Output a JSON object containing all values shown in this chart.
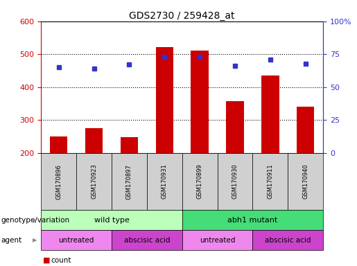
{
  "title": "GDS2730 / 259428_at",
  "samples": [
    "GSM170896",
    "GSM170923",
    "GSM170897",
    "GSM170931",
    "GSM170899",
    "GSM170930",
    "GSM170911",
    "GSM170940"
  ],
  "counts": [
    250,
    275,
    248,
    522,
    510,
    358,
    435,
    340
  ],
  "percentile_ranks": [
    65,
    64,
    67,
    73,
    73,
    66,
    71,
    68
  ],
  "ylim_left": [
    200,
    600
  ],
  "ylim_right": [
    0,
    100
  ],
  "yticks_left": [
    200,
    300,
    400,
    500,
    600
  ],
  "yticks_right": [
    0,
    25,
    50,
    75,
    100
  ],
  "ytick_labels_right": [
    "0",
    "25",
    "50",
    "75",
    "100%"
  ],
  "bar_color": "#cc0000",
  "dot_color": "#3333cc",
  "bar_bottom": 200,
  "genotype_groups": [
    {
      "label": "wild type",
      "start": 0,
      "end": 4,
      "color": "#bbffbb"
    },
    {
      "label": "abh1 mutant",
      "start": 4,
      "end": 8,
      "color": "#44dd77"
    }
  ],
  "agent_groups": [
    {
      "label": "untreated",
      "start": 0,
      "end": 2,
      "color": "#ee88ee"
    },
    {
      "label": "abscisic acid",
      "start": 2,
      "end": 4,
      "color": "#cc44cc"
    },
    {
      "label": "untreated",
      "start": 4,
      "end": 6,
      "color": "#ee88ee"
    },
    {
      "label": "abscisic acid",
      "start": 6,
      "end": 8,
      "color": "#cc44cc"
    }
  ],
  "left_axis_color": "#cc0000",
  "right_axis_color": "#3333cc",
  "background_color": "#ffffff",
  "tick_label_area_color": "#d0d0d0",
  "genotype_label": "genotype/variation",
  "agent_label": "agent",
  "hgrid_ticks": [
    300,
    400,
    500
  ]
}
